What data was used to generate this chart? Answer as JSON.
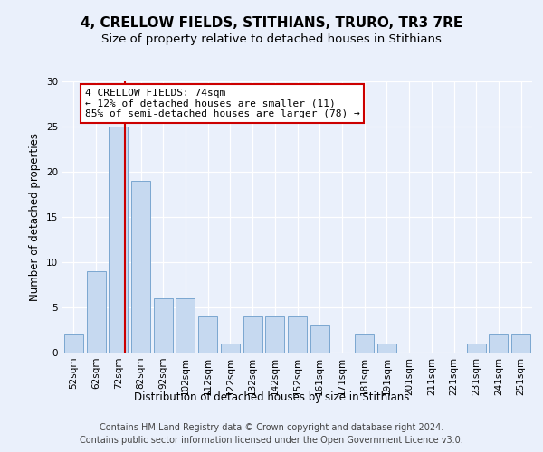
{
  "title": "4, CRELLOW FIELDS, STITHIANS, TRURO, TR3 7RE",
  "subtitle": "Size of property relative to detached houses in Stithians",
  "xlabel": "Distribution of detached houses by size in Stithians",
  "ylabel": "Number of detached properties",
  "categories": [
    "52sqm",
    "62sqm",
    "72sqm",
    "82sqm",
    "92sqm",
    "102sqm",
    "112sqm",
    "122sqm",
    "132sqm",
    "142sqm",
    "152sqm",
    "161sqm",
    "171sqm",
    "181sqm",
    "191sqm",
    "201sqm",
    "211sqm",
    "221sqm",
    "231sqm",
    "241sqm",
    "251sqm"
  ],
  "values": [
    2,
    9,
    25,
    19,
    6,
    6,
    4,
    1,
    4,
    4,
    4,
    3,
    0,
    2,
    1,
    0,
    0,
    0,
    1,
    2,
    2
  ],
  "bar_color": "#c6d9f0",
  "bar_edge_color": "#7ba7d0",
  "vline_color": "#cc0000",
  "vline_x_index": 2.3,
  "annotation_text": "4 CRELLOW FIELDS: 74sqm\n← 12% of detached houses are smaller (11)\n85% of semi-detached houses are larger (78) →",
  "annotation_box_color": "white",
  "annotation_box_edge": "#cc0000",
  "ylim": [
    0,
    30
  ],
  "yticks": [
    0,
    5,
    10,
    15,
    20,
    25,
    30
  ],
  "bg_color": "#eaf0fb",
  "plot_bg_color": "#eaf0fb",
  "footer_line1": "Contains HM Land Registry data © Crown copyright and database right 2024.",
  "footer_line2": "Contains public sector information licensed under the Open Government Licence v3.0.",
  "title_fontsize": 11,
  "subtitle_fontsize": 9.5,
  "axis_label_fontsize": 8.5,
  "tick_fontsize": 7.5,
  "footer_fontsize": 7,
  "annotation_fontsize": 8,
  "ylabel_fontsize": 8.5
}
